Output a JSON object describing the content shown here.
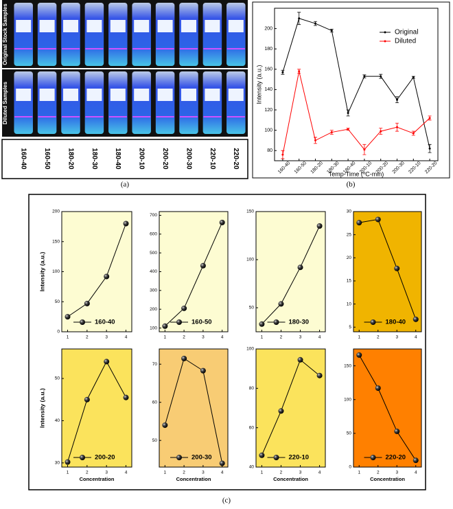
{
  "photo": {
    "row_labels": [
      "Original Stock Samples",
      "Diluted Samples"
    ],
    "categories": [
      "160-40",
      "160-50",
      "180-20",
      "180-30",
      "180-40",
      "200-10",
      "200-20",
      "200-30",
      "220-10",
      "220-20"
    ]
  },
  "captions": [
    "(a)",
    "(b)",
    "(c)"
  ],
  "chart_data": [
    {
      "type": "line",
      "categories": [
        "160-40",
        "160-50",
        "180-20",
        "180-30",
        "180-40",
        "200-10",
        "200-20",
        "200-30",
        "220-10",
        "220-20"
      ],
      "series": [
        {
          "name": "Original",
          "color": "#000000",
          "values": [
            157,
            210,
            205,
            198,
            117,
            153,
            153,
            130,
            152,
            82
          ],
          "errors": [
            2,
            6,
            2,
            1.5,
            3,
            1.5,
            2,
            3,
            1,
            4
          ]
        },
        {
          "name": "Diluted",
          "color": "#ff0000",
          "values": [
            76,
            158,
            90,
            98,
            101,
            81,
            99,
            103,
            97,
            112
          ],
          "errors": [
            4,
            2,
            3,
            2,
            1,
            5,
            3,
            4,
            2,
            2
          ]
        }
      ],
      "ylim": [
        70,
        220
      ],
      "yticks": [
        80,
        100,
        120,
        140,
        160,
        180,
        200
      ],
      "y_label": "Intensity (a.u.)",
      "x_label": "Temp-Time (ºC-min)",
      "legend": "upper right"
    },
    {
      "type": "line",
      "x": [
        1,
        2,
        3,
        4
      ],
      "xlim": [
        0.7,
        4.3
      ],
      "xticks": [
        1,
        2,
        3,
        4
      ],
      "background": "#fdfcd2",
      "ylim": [
        0,
        200
      ],
      "yticks": [
        0,
        50,
        100,
        150,
        200
      ],
      "y_label": "Intensity (a.u.)",
      "series": [
        {
          "name": "160-40",
          "color": "#000000",
          "values": [
            25,
            47,
            92,
            180
          ]
        }
      ]
    },
    {
      "type": "line",
      "x": [
        1,
        2,
        3,
        4
      ],
      "xlim": [
        0.7,
        4.3
      ],
      "xticks": [
        1,
        2,
        3,
        4
      ],
      "background": "#fdfcd2",
      "ylim": [
        80,
        720
      ],
      "yticks": [
        100,
        200,
        300,
        400,
        500,
        600,
        700
      ],
      "series": [
        {
          "name": "160-50",
          "color": "#000000",
          "values": [
            110,
            205,
            432,
            662
          ]
        }
      ]
    },
    {
      "type": "line",
      "x": [
        1,
        2,
        3,
        4
      ],
      "xlim": [
        0.7,
        4.3
      ],
      "xticks": [
        1,
        2,
        3,
        4
      ],
      "background": "#fdfcd2",
      "ylim": [
        25,
        150
      ],
      "yticks": [
        50,
        100,
        150
      ],
      "series": [
        {
          "name": "180-30",
          "color": "#000000",
          "values": [
            33,
            54,
            92,
            135
          ]
        }
      ]
    },
    {
      "type": "line",
      "x": [
        1,
        2,
        3,
        4
      ],
      "xlim": [
        0.7,
        4.3
      ],
      "xticks": [
        1,
        2,
        3,
        4
      ],
      "background": "#f0b400",
      "ylim": [
        4,
        30
      ],
      "yticks": [
        5,
        10,
        15,
        20,
        25,
        30
      ],
      "series": [
        {
          "name": "180-40",
          "color": "#000000",
          "values": [
            27.6,
            28.3,
            17.7,
            6.7
          ]
        }
      ]
    },
    {
      "type": "line",
      "x": [
        1,
        2,
        3,
        4
      ],
      "xlim": [
        0.7,
        4.3
      ],
      "xticks": [
        1,
        2,
        3,
        4
      ],
      "background": "#fbe35c",
      "ylim": [
        29,
        57
      ],
      "yticks": [
        30,
        40,
        50
      ],
      "y_label": "Intensity (a.u.)",
      "x_label": "Concentration",
      "series": [
        {
          "name": "200-20",
          "color": "#000000",
          "values": [
            30.2,
            45,
            54,
            45.5
          ]
        }
      ]
    },
    {
      "type": "line",
      "x": [
        1,
        2,
        3,
        4
      ],
      "xlim": [
        0.7,
        4.3
      ],
      "xticks": [
        1,
        2,
        3,
        4
      ],
      "background": "#f8cc74",
      "ylim": [
        43,
        74
      ],
      "yticks": [
        50,
        60,
        70
      ],
      "x_label": "Concentration",
      "series": [
        {
          "name": "200-30",
          "color": "#000000",
          "values": [
            54,
            71.5,
            68.3,
            44
          ]
        }
      ]
    },
    {
      "type": "line",
      "x": [
        1,
        2,
        3,
        4
      ],
      "xlim": [
        0.7,
        4.3
      ],
      "xticks": [
        1,
        2,
        3,
        4
      ],
      "background": "#fbe35c",
      "ylim": [
        40,
        100
      ],
      "yticks": [
        40,
        60,
        80,
        100
      ],
      "x_label": "Concentration",
      "series": [
        {
          "name": "220-10",
          "color": "#000000",
          "values": [
            46,
            68.5,
            94.5,
            86.5
          ]
        }
      ]
    },
    {
      "type": "line",
      "x": [
        1,
        2,
        3,
        4
      ],
      "xlim": [
        0.7,
        4.3
      ],
      "xticks": [
        1,
        2,
        3,
        4
      ],
      "background": "#ff8000",
      "ylim": [
        0,
        175
      ],
      "yticks": [
        0,
        50,
        100,
        150
      ],
      "x_label": "Concentration",
      "series": [
        {
          "name": "220-20",
          "color": "#000000",
          "values": [
            166,
            117,
            53,
            10
          ]
        }
      ]
    }
  ]
}
